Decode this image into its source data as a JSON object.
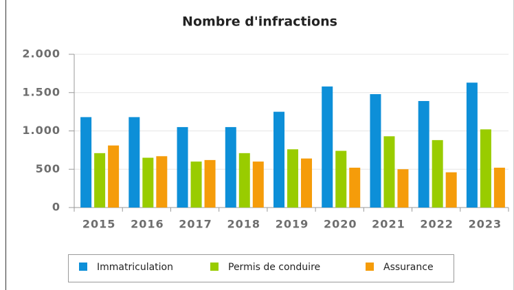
{
  "chart_data": {
    "type": "bar",
    "title": "Nombre d'infractions",
    "categories": [
      "2015",
      "2016",
      "2017",
      "2018",
      "2019",
      "2020",
      "2021",
      "2022",
      "2023"
    ],
    "series": [
      {
        "name": "Immatriculation",
        "color": "#0d8fd8",
        "values": [
          1180,
          1180,
          1050,
          1050,
          1250,
          1580,
          1480,
          1390,
          1630
        ]
      },
      {
        "name": "Permis de conduire",
        "color": "#99cc00",
        "values": [
          710,
          650,
          600,
          710,
          760,
          740,
          930,
          880,
          1020
        ]
      },
      {
        "name": "Assurance",
        "color": "#f59c0a",
        "values": [
          810,
          670,
          620,
          600,
          640,
          520,
          500,
          460,
          520
        ]
      }
    ],
    "ylim": [
      0,
      2000
    ],
    "yticks": [
      0,
      500,
      {
        "value": 1000,
        "label": "1.000"
      },
      {
        "value": 1500,
        "label": "1.500"
      },
      {
        "value": 2000,
        "label": "2.000"
      }
    ],
    "grid": true,
    "legend": "bottom"
  }
}
